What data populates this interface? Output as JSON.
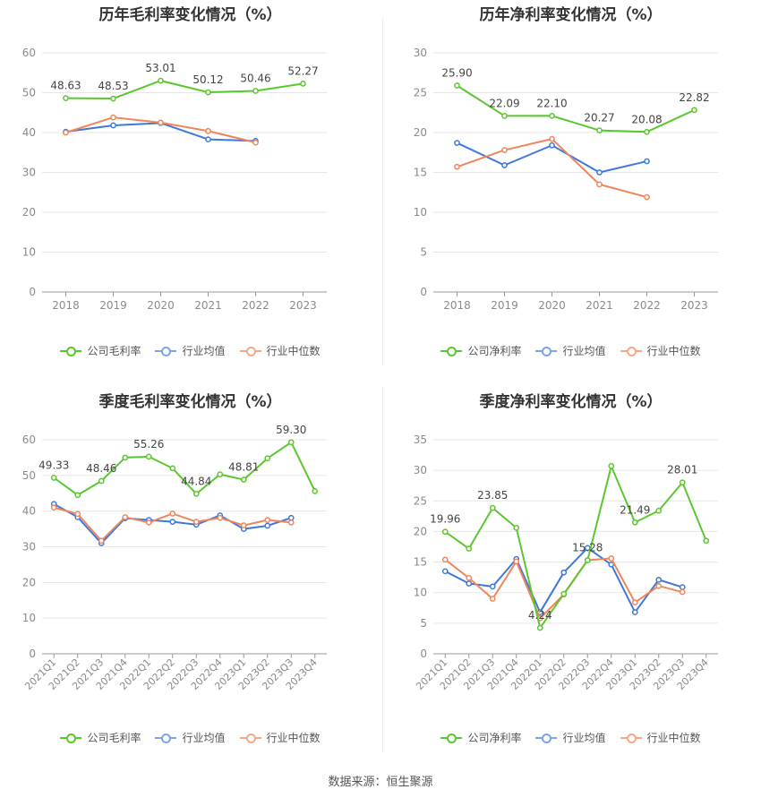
{
  "source_text": "数据来源：恒生聚源",
  "colors": {
    "company": "#5bc72e",
    "avg": "#3f78dc",
    "median": "#f1855a"
  },
  "chart_data": [
    {
      "type": "line",
      "title": "历年毛利率变化情况（%）",
      "categories": [
        "2018",
        "2019",
        "2020",
        "2021",
        "2022",
        "2023"
      ],
      "ylim": [
        0,
        60
      ],
      "yticks": [
        0,
        10,
        20,
        30,
        40,
        50,
        60
      ],
      "series": [
        {
          "name": "公司毛利率",
          "key": "company",
          "values": [
            48.63,
            48.53,
            53.01,
            50.12,
            50.46,
            52.27
          ],
          "labels": [
            "48.63",
            "48.53",
            "53.01",
            "50.12",
            "50.46",
            "52.27"
          ]
        },
        {
          "name": "行业均值",
          "key": "avg",
          "values": [
            40.2,
            41.8,
            42.4,
            38.3,
            37.9,
            null
          ]
        },
        {
          "name": "行业中位数",
          "key": "median",
          "values": [
            40.0,
            43.8,
            42.5,
            40.4,
            37.5,
            null
          ]
        }
      ]
    },
    {
      "type": "line",
      "title": "历年净利率变化情况（%）",
      "categories": [
        "2018",
        "2019",
        "2020",
        "2021",
        "2022",
        "2023"
      ],
      "ylim": [
        0,
        30
      ],
      "yticks": [
        0,
        5,
        10,
        15,
        20,
        25,
        30
      ],
      "series": [
        {
          "name": "公司净利率",
          "key": "company",
          "values": [
            25.9,
            22.09,
            22.1,
            20.27,
            20.08,
            22.82
          ],
          "labels": [
            "25.90",
            "22.09",
            "22.10",
            "20.27",
            "20.08",
            "22.82"
          ]
        },
        {
          "name": "行业均值",
          "key": "avg",
          "values": [
            18.7,
            15.9,
            18.4,
            15.0,
            16.4,
            null
          ]
        },
        {
          "name": "行业中位数",
          "key": "median",
          "values": [
            15.7,
            17.8,
            19.2,
            13.5,
            11.9,
            null
          ]
        }
      ]
    },
    {
      "type": "line",
      "title": "季度毛利率变化情况（%）",
      "categories": [
        "2021Q1",
        "2021Q2",
        "2021Q3",
        "2021Q4",
        "2022Q1",
        "2022Q2",
        "2022Q3",
        "2022Q4",
        "2023Q1",
        "2023Q2",
        "2023Q3",
        "2023Q4"
      ],
      "ylim": [
        0,
        60
      ],
      "yticks": [
        0,
        10,
        20,
        30,
        40,
        50,
        60
      ],
      "rotate_x": true,
      "series": [
        {
          "name": "公司毛利率",
          "key": "company",
          "values": [
            49.33,
            44.5,
            48.46,
            55.0,
            55.26,
            52.0,
            44.84,
            50.3,
            48.81,
            54.8,
            59.3,
            45.6
          ],
          "labels": [
            "49.33",
            "",
            "48.46",
            "",
            "55.26",
            "",
            "44.84",
            "",
            "48.81",
            "",
            "59.30",
            ""
          ]
        },
        {
          "name": "行业均值",
          "key": "avg",
          "values": [
            42.0,
            38.3,
            31.0,
            38.0,
            37.5,
            37.0,
            36.2,
            38.8,
            35.0,
            35.9,
            38.1,
            null
          ]
        },
        {
          "name": "行业中位数",
          "key": "median",
          "values": [
            41.0,
            39.2,
            31.7,
            38.3,
            36.8,
            39.3,
            37.0,
            38.1,
            36.0,
            37.5,
            36.8,
            null
          ]
        }
      ]
    },
    {
      "type": "line",
      "title": "季度净利率变化情况（%）",
      "categories": [
        "2021Q1",
        "2021Q2",
        "2021Q3",
        "2021Q4",
        "2022Q1",
        "2022Q2",
        "2022Q3",
        "2022Q4",
        "2023Q1",
        "2023Q2",
        "2023Q3",
        "2023Q4"
      ],
      "ylim": [
        0,
        35
      ],
      "yticks": [
        0,
        5,
        10,
        15,
        20,
        25,
        30,
        35
      ],
      "rotate_x": true,
      "series": [
        {
          "name": "公司净利率",
          "key": "company",
          "values": [
            19.96,
            17.2,
            23.85,
            20.6,
            4.24,
            9.8,
            15.28,
            30.7,
            21.49,
            23.4,
            28.01,
            18.5
          ],
          "labels": [
            "19.96",
            "",
            "23.85",
            "",
            "4.24",
            "",
            "15.28",
            "",
            "21.49",
            "",
            "28.01",
            ""
          ]
        },
        {
          "name": "行业均值",
          "key": "avg",
          "values": [
            13.5,
            11.5,
            11.0,
            15.5,
            6.8,
            13.3,
            17.3,
            14.6,
            6.8,
            12.1,
            10.9,
            null
          ]
        },
        {
          "name": "行业中位数",
          "key": "median",
          "values": [
            15.4,
            12.4,
            9.0,
            15.1,
            5.8,
            9.7,
            15.3,
            15.6,
            8.4,
            11.1,
            10.1,
            null
          ]
        }
      ]
    }
  ]
}
